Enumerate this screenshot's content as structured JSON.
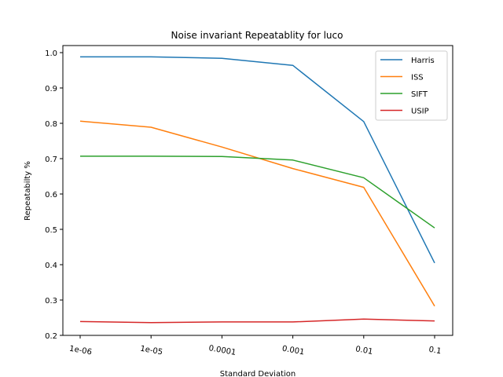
{
  "chart_data": {
    "type": "line",
    "title": "Noise invariant Repeatablity for luco",
    "xlabel": "Standard Deviation",
    "ylabel": "Repeatabilty %",
    "categories": [
      "1e-06",
      "1e-05",
      "0.0001",
      "0.001",
      "0.01",
      "0.1"
    ],
    "ylim": [
      0.2,
      1.02
    ],
    "yticks": [
      0.2,
      0.3,
      0.4,
      0.5,
      0.6,
      0.7,
      0.8,
      0.9,
      1.0
    ],
    "ytick_labels": [
      "0.2",
      "0.3",
      "0.4",
      "0.5",
      "0.6",
      "0.7",
      "0.8",
      "0.9",
      "1.0"
    ],
    "grid": false,
    "legend_position": "top-right",
    "series": [
      {
        "name": "Harris",
        "color": "#1f77b4",
        "values": [
          0.988,
          0.988,
          0.984,
          0.964,
          0.805,
          0.405
        ]
      },
      {
        "name": "ISS",
        "color": "#ff7f0e",
        "values": [
          0.806,
          0.789,
          0.733,
          0.672,
          0.619,
          0.283
        ]
      },
      {
        "name": "SIFT",
        "color": "#2ca02c",
        "values": [
          0.707,
          0.707,
          0.706,
          0.696,
          0.646,
          0.504
        ]
      },
      {
        "name": "USIP",
        "color": "#d62728",
        "values": [
          0.239,
          0.236,
          0.238,
          0.238,
          0.246,
          0.241
        ]
      }
    ]
  }
}
